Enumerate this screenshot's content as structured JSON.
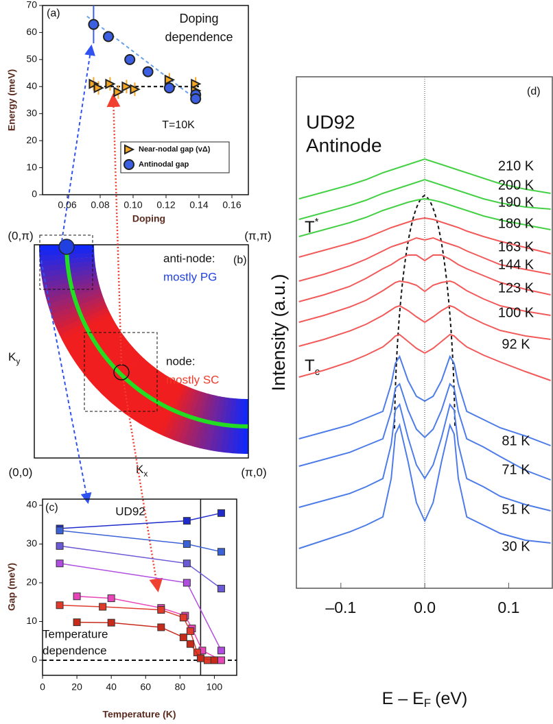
{
  "chart_data": [
    {
      "type": "scatter",
      "panel_label": "(a)",
      "annotations": [
        "Doping",
        "dependence",
        "T=10K"
      ],
      "xlabel": "Doping",
      "ylabel": "Energy (meV)",
      "xlim": [
        0.045,
        0.17
      ],
      "ylim": [
        0,
        70
      ],
      "xticks": [
        0.06,
        0.08,
        {
          "value": 0.1,
          "label": "0.10"
        },
        0.12,
        0.14,
        0.16
      ],
      "yticks": [
        0,
        10,
        20,
        30,
        40,
        50,
        60,
        70
      ],
      "legend": "lower right",
      "series": [
        {
          "name": "Near-nodal gap (vΔ)",
          "color": "#f5a623",
          "marker": "triangle",
          "x": [
            0.076,
            0.079,
            0.086,
            0.091,
            0.096,
            0.101,
            0.122,
            0.138,
            0.138
          ],
          "values": [
            41,
            39.5,
            41,
            38,
            40,
            39,
            42.5,
            41,
            38.5
          ],
          "errors": [
            2.5,
            2.5,
            2.5,
            2.5,
            2.5,
            2.5,
            2.5,
            2.5,
            2.5
          ]
        },
        {
          "name": "Antinodal gap",
          "color": "#3b5fe0",
          "marker": "circle",
          "x": [
            0.076,
            0.085,
            0.098,
            0.109,
            0.122,
            0.138,
            0.138
          ],
          "values": [
            63,
            58.5,
            50,
            45.5,
            39.5,
            37,
            35.5
          ],
          "errors": [
            7,
            1.5,
            1.5,
            1.5,
            1.5,
            1.5,
            1.5
          ]
        }
      ],
      "fits": [
        {
          "color": "#6aa0e8",
          "x": [
            0.072,
            0.14
          ],
          "values": [
            66,
            34.5
          ]
        },
        {
          "color": "#000000",
          "x": [
            0.075,
            0.14
          ],
          "values": [
            40,
            40
          ]
        }
      ]
    },
    {
      "type": "line",
      "panel_label": "(c)",
      "annotations": [
        "UD92",
        "Temperature",
        "dependence"
      ],
      "xlabel": "Temperature (K)",
      "ylabel": "Gap (meV)",
      "xlim": [
        0,
        113
      ],
      "ylim": [
        -3.9,
        41.6
      ],
      "xticks": [
        0,
        20,
        40,
        60,
        80,
        100
      ],
      "yticks": [
        0,
        10,
        20,
        30,
        40
      ],
      "vline": 92,
      "hline": 0,
      "series": [
        {
          "color": "#1f2bcc",
          "x": [
            10,
            84,
            104
          ],
          "values": [
            34,
            36,
            38
          ]
        },
        {
          "color": "#3a62d6",
          "x": [
            10,
            84,
            104
          ],
          "values": [
            33.5,
            30,
            28
          ]
        },
        {
          "color": "#6b5ad6",
          "x": [
            10,
            84,
            104
          ],
          "values": [
            29.5,
            25,
            18.5
          ]
        },
        {
          "color": "#b04de0",
          "x": [
            10,
            84,
            104
          ],
          "values": [
            25,
            20,
            2.5
          ]
        },
        {
          "color": "#e845b8",
          "x": [
            20,
            40,
            69,
            83,
            87,
            93,
            104
          ],
          "values": [
            16.5,
            16,
            13.5,
            11.5,
            8.2,
            2.5,
            0
          ]
        },
        {
          "color": "#e03a2a",
          "x": [
            10,
            35,
            69,
            82,
            86,
            90,
            96
          ],
          "values": [
            14.2,
            13.8,
            13,
            11,
            7.5,
            2,
            0
          ]
        },
        {
          "color": "#c82a1a",
          "x": [
            20,
            40,
            69,
            82,
            86,
            92,
            100
          ],
          "values": [
            9.8,
            9.7,
            8.5,
            5.9,
            4.2,
            0.5,
            0
          ]
        }
      ]
    },
    {
      "type": "line",
      "panel_label": "(d)",
      "annotations": [
        "UD92",
        "Antinode"
      ],
      "temperature_marks": [
        {
          "text": "T",
          "sup": "*"
        },
        {
          "text": "T",
          "sub": "c"
        }
      ],
      "xlabel": "E – E",
      "xlabel_sub": "F",
      "xlabel_unit": "(eV)",
      "ylabel": "Intensity (a.u.)",
      "xlim": [
        -0.153,
        0.152
      ],
      "ylim": [
        0,
        746
      ],
      "xticks": [
        {
          "value": -0.1,
          "label": "–0.1"
        },
        {
          "value": 0,
          "label": "0.0"
        },
        0.1
      ],
      "x": [
        -0.15,
        -0.12,
        -0.09,
        -0.07,
        -0.05,
        -0.04,
        -0.035,
        -0.03,
        -0.02,
        -0.01,
        0,
        0.01,
        0.02,
        0.03,
        0.035,
        0.04,
        0.05,
        0.07,
        0.09,
        0.12,
        0.15
      ],
      "series": [
        {
          "name": "210 K",
          "color": "#44d044",
          "values": [
            568,
            578,
            588,
            596,
            606,
            610,
            612,
            614,
            618,
            622,
            626,
            622,
            618,
            614,
            612,
            610,
            606,
            598,
            590,
            582,
            576
          ]
        },
        {
          "name": "200 K",
          "color": "#44d044",
          "values": [
            538,
            548,
            558,
            566,
            576,
            580,
            582,
            584,
            588,
            592,
            596,
            592,
            588,
            584,
            582,
            580,
            576,
            568,
            562,
            556,
            553
          ]
        },
        {
          "name": "190 K",
          "color": "#44d044",
          "values": [
            513,
            523,
            533,
            541,
            551,
            555,
            557,
            559,
            563,
            566,
            568,
            566,
            563,
            559,
            557,
            555,
            551,
            543,
            537,
            530,
            523
          ]
        },
        {
          "name": "180 K",
          "color": "#f25a5a",
          "values": [
            483,
            493,
            503,
            511,
            521,
            526,
            528,
            530,
            534,
            538,
            540,
            538,
            534,
            530,
            528,
            526,
            521,
            513,
            506,
            497,
            488
          ]
        },
        {
          "name": "163 K",
          "color": "#f25a5a",
          "values": [
            448,
            458,
            470,
            480,
            492,
            498,
            500,
            502,
            506,
            511,
            508,
            511,
            506,
            502,
            500,
            498,
            492,
            482,
            472,
            465,
            458
          ]
        },
        {
          "name": "144 K",
          "color": "#f25a5a",
          "values": [
            418,
            428,
            440,
            452,
            466,
            472,
            476,
            480,
            486,
            486,
            478,
            486,
            486,
            480,
            476,
            472,
            466,
            456,
            446,
            436,
            428
          ]
        },
        {
          "name": "123 K",
          "color": "#f25a5a",
          "values": [
            388,
            398,
            410,
            420,
            434,
            442,
            446,
            448,
            446,
            442,
            433,
            442,
            446,
            448,
            446,
            442,
            434,
            422,
            412,
            404,
            398
          ]
        },
        {
          "name": "100 K",
          "color": "#f25a5a",
          "values": [
            353,
            363,
            375,
            385,
            398,
            406,
            410,
            412,
            405,
            396,
            388,
            396,
            405,
            412,
            410,
            406,
            398,
            386,
            376,
            368,
            363
          ]
        },
        {
          "name": "92 K",
          "color": "#f25a5a",
          "values": [
            308,
            318,
            330,
            340,
            352,
            362,
            368,
            370,
            360,
            350,
            343,
            350,
            360,
            370,
            368,
            362,
            352,
            340,
            330,
            316,
            303
          ]
        },
        {
          "name": "81 K",
          "color": "#4d7be8",
          "values": [
            218,
            228,
            238,
            248,
            258,
            298,
            328,
            338,
            303,
            280,
            273,
            280,
            303,
            338,
            328,
            298,
            258,
            246,
            234,
            222,
            208
          ]
        },
        {
          "name": "71 K",
          "color": "#4d7be8",
          "values": [
            178,
            188,
            198,
            208,
            218,
            258,
            292,
            298,
            260,
            232,
            220,
            232,
            260,
            298,
            292,
            258,
            218,
            206,
            192,
            172,
            158
          ]
        },
        {
          "name": "51 K",
          "color": "#4d7be8",
          "values": [
            118,
            128,
            138,
            148,
            160,
            210,
            260,
            268,
            220,
            180,
            160,
            180,
            220,
            268,
            260,
            210,
            160,
            148,
            134,
            122,
            113
          ]
        },
        {
          "name": "30 K",
          "color": "#4d7be8",
          "values": [
            58,
            70,
            82,
            92,
            104,
            160,
            225,
            238,
            185,
            125,
            98,
            125,
            185,
            238,
            225,
            160,
            104,
            92,
            80,
            70,
            66
          ]
        }
      ]
    }
  ],
  "diagram": {
    "panel_label": "(b)",
    "corners": [
      "(0,π)",
      "(π,π)",
      "(0,0)",
      "(π,0)"
    ],
    "ky": "K",
    "ky_sub": "y",
    "kx": "K",
    "kx_sub": "x",
    "antinode": "anti-node:",
    "antinode_note": "mostly PG",
    "node": "node:",
    "node_note": "mostly SC"
  }
}
